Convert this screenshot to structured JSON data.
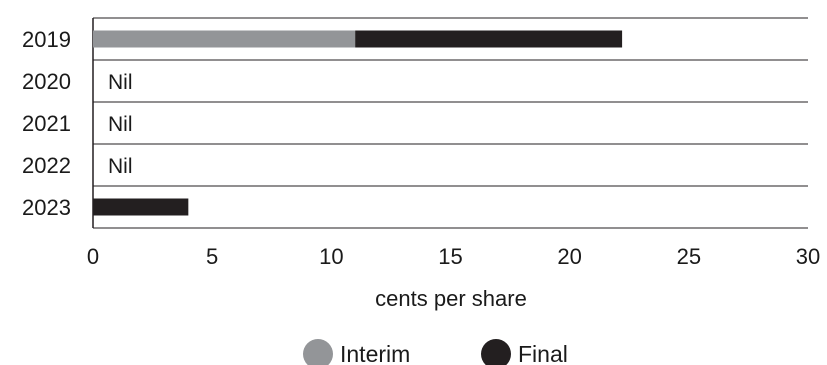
{
  "chart_data": {
    "type": "bar",
    "orientation": "horizontal",
    "stacked": true,
    "categories": [
      "2019",
      "2020",
      "2021",
      "2022",
      "2023"
    ],
    "series": [
      {
        "name": "Interim",
        "color": "#939598",
        "values": [
          11,
          0,
          0,
          0,
          0
        ]
      },
      {
        "name": "Final",
        "color": "#231f20",
        "values": [
          11.2,
          0,
          0,
          0,
          4
        ]
      }
    ],
    "annotations": [
      "",
      "Nil",
      "Nil",
      "Nil",
      ""
    ],
    "xlabel": "cents per share",
    "xlim": [
      0,
      30
    ],
    "xticks": [
      0,
      5,
      10,
      15,
      20,
      25,
      30
    ],
    "grid": "horizontal separators",
    "legend": "bottom"
  }
}
